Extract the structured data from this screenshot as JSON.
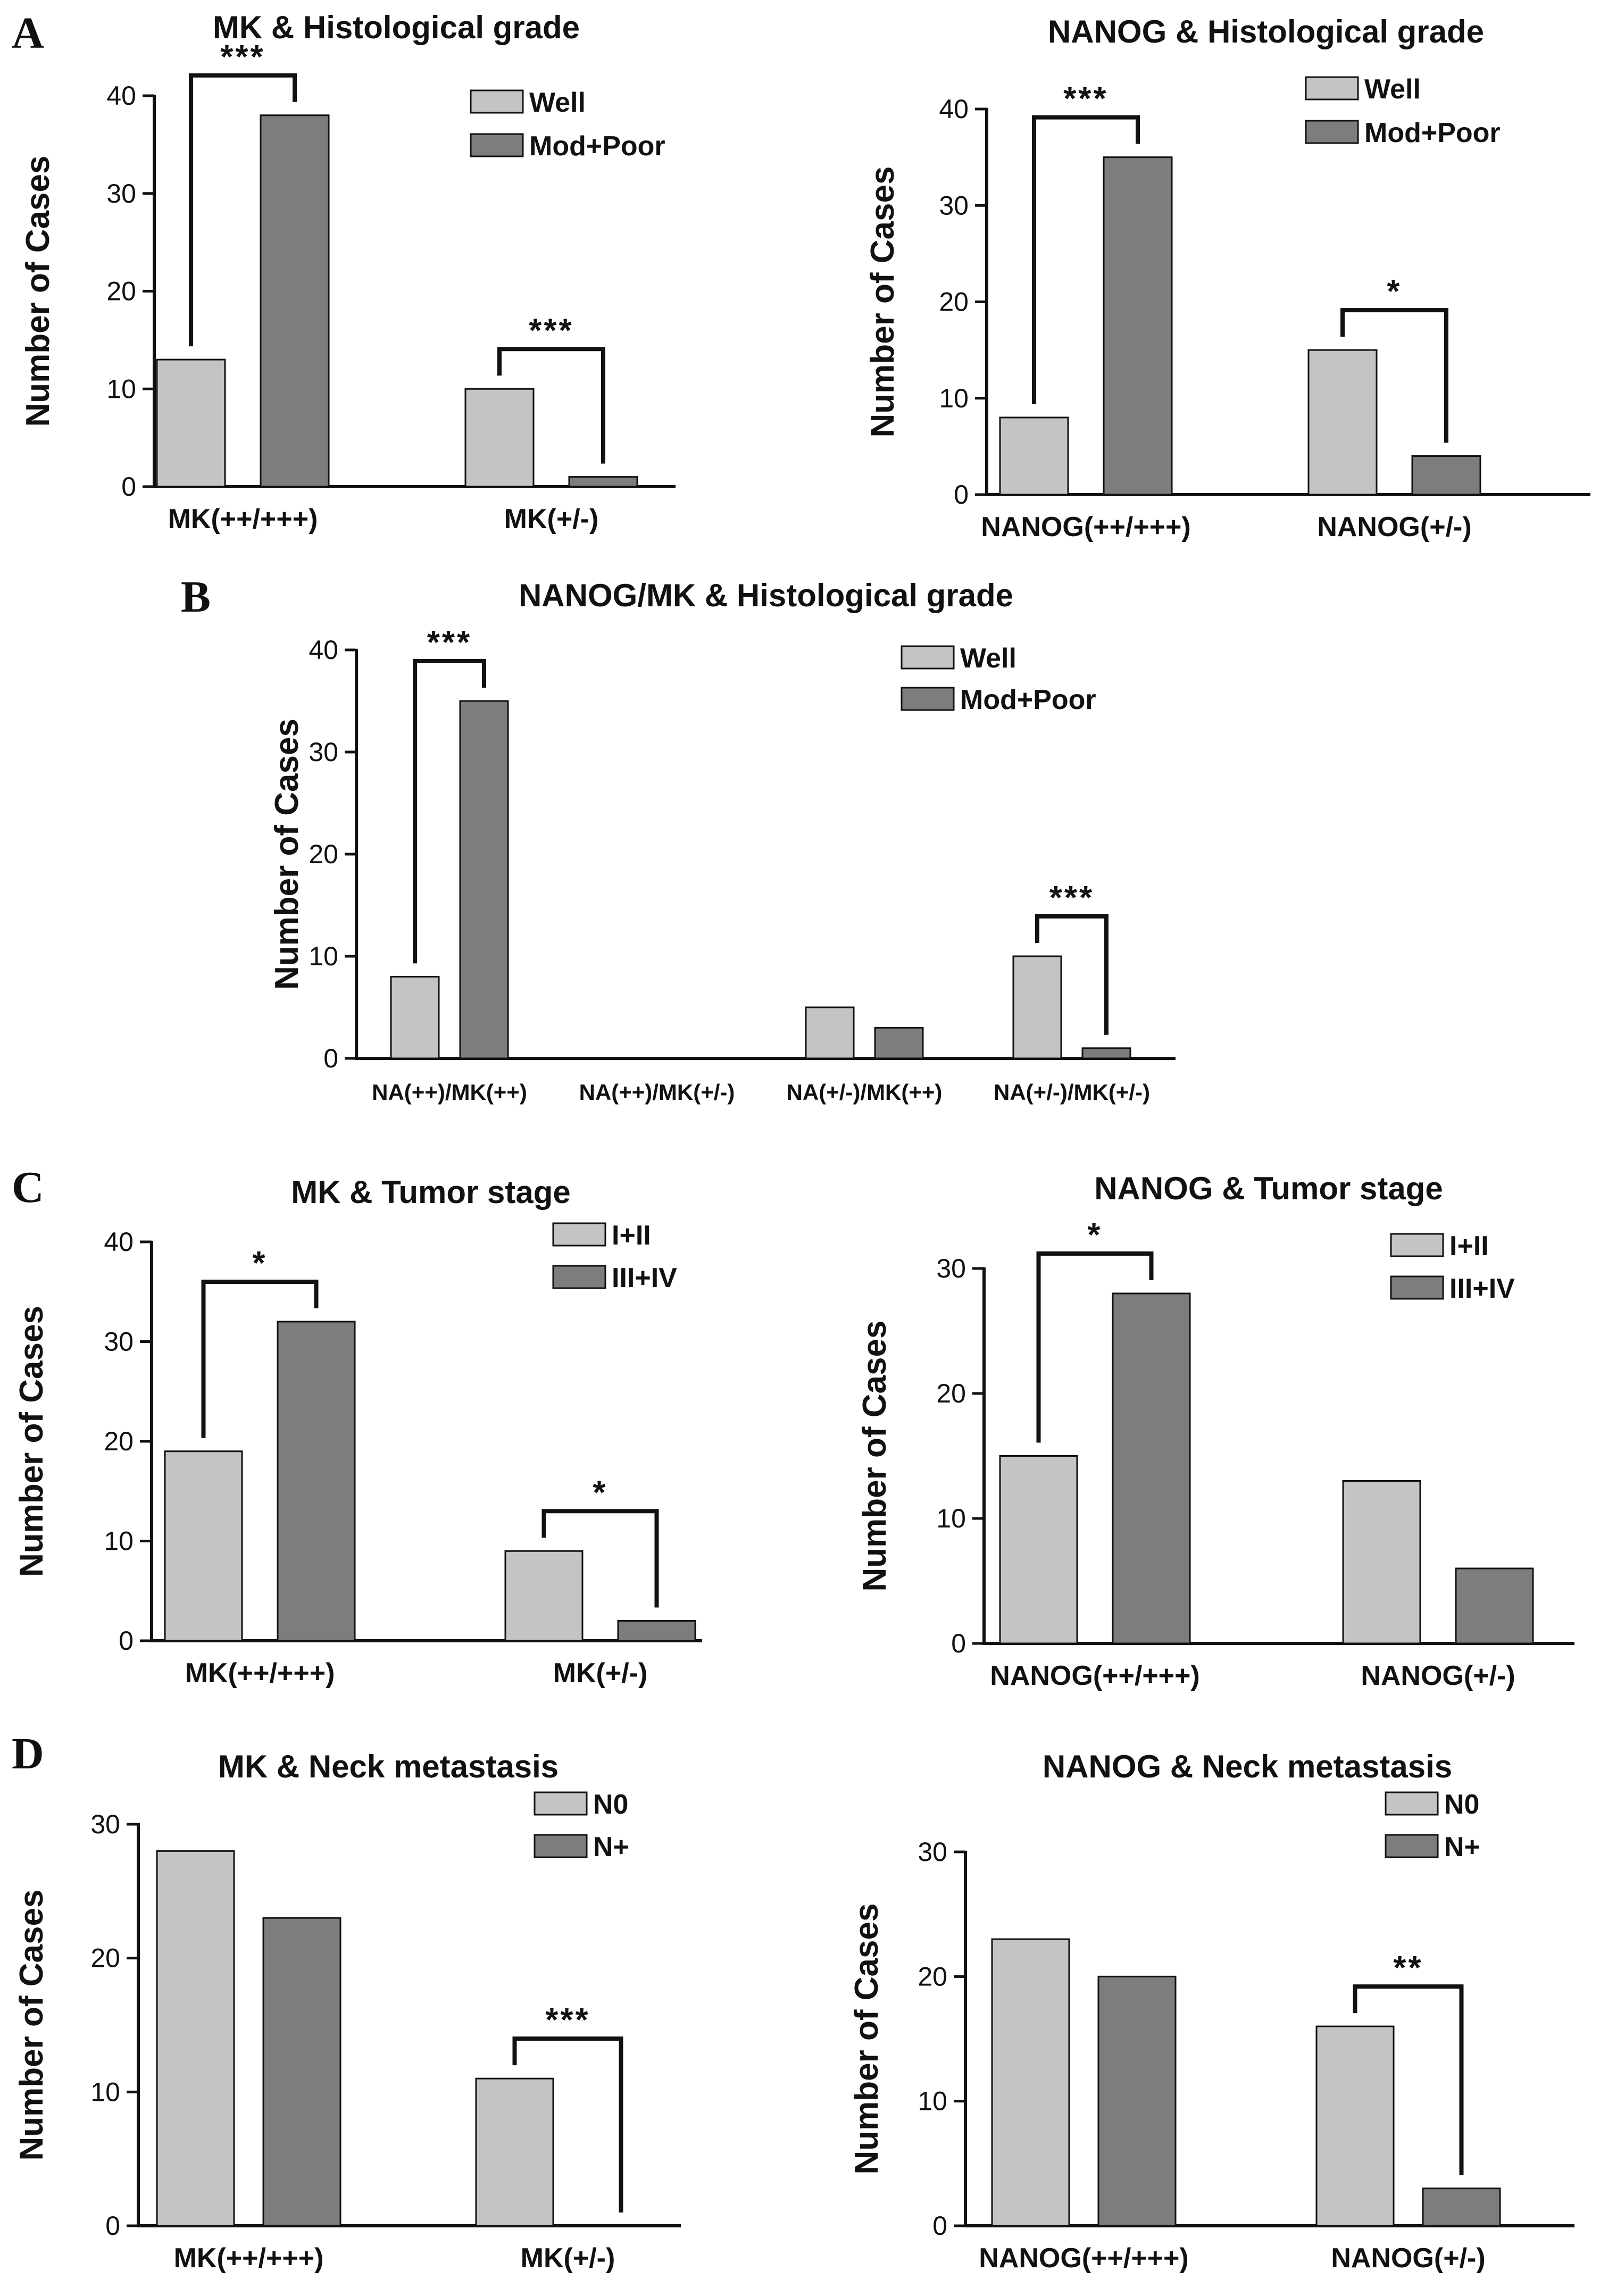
{
  "panel_letters": [
    "A",
    "B",
    "C",
    "D"
  ],
  "colors": {
    "light": "#c4c4c4",
    "dark": "#7d7d7d",
    "stroke": "#111111"
  },
  "chart_data": [
    {
      "id": "A1",
      "type": "bar",
      "title": "MK & Histological grade",
      "ylabel": "Number of Cases",
      "ylim": [
        0,
        40
      ],
      "yticks": [
        0,
        10,
        20,
        30,
        40
      ],
      "categories": [
        "MK(++/+++)",
        "MK(+/-)"
      ],
      "series": [
        {
          "name": "Well",
          "values": [
            13,
            10
          ]
        },
        {
          "name": "Mod+Poor",
          "values": [
            38,
            1
          ]
        }
      ],
      "significance": [
        {
          "category": 0,
          "label": "***"
        },
        {
          "category": 1,
          "label": "***"
        }
      ]
    },
    {
      "id": "A2",
      "type": "bar",
      "title": "NANOG & Histological grade",
      "ylabel": "Number of Cases",
      "ylim": [
        0,
        40
      ],
      "yticks": [
        0,
        10,
        20,
        30,
        40
      ],
      "categories": [
        "NANOG(++/+++)",
        "NANOG(+/-)"
      ],
      "series": [
        {
          "name": "Well",
          "values": [
            8,
            15
          ]
        },
        {
          "name": "Mod+Poor",
          "values": [
            35,
            4
          ]
        }
      ],
      "significance": [
        {
          "category": 0,
          "label": "***"
        },
        {
          "category": 1,
          "label": "*"
        }
      ]
    },
    {
      "id": "B",
      "type": "bar",
      "title": "NANOG/MK & Histological grade",
      "ylabel": "Number of Cases",
      "ylim": [
        0,
        40
      ],
      "yticks": [
        0,
        10,
        20,
        30,
        40
      ],
      "categories": [
        "NA(++)/MK(++)",
        "NA(++)/MK(+/-)",
        "NA(+/-)/MK(++)",
        "NA(+/-)/MK(+/-)"
      ],
      "series": [
        {
          "name": "Well",
          "values": [
            8,
            0,
            5,
            10
          ]
        },
        {
          "name": "Mod+Poor",
          "values": [
            35,
            0,
            3,
            1
          ]
        }
      ],
      "significance": [
        {
          "category": 0,
          "label": "***"
        },
        {
          "category": 3,
          "label": "***"
        }
      ]
    },
    {
      "id": "C1",
      "type": "bar",
      "title": "MK & Tumor stage",
      "ylabel": "Number of Cases",
      "ylim": [
        0,
        40
      ],
      "yticks": [
        0,
        10,
        20,
        30,
        40
      ],
      "categories": [
        "MK(++/+++)",
        "MK(+/-)"
      ],
      "series": [
        {
          "name": "I+II",
          "values": [
            19,
            9
          ]
        },
        {
          "name": "III+IV",
          "values": [
            32,
            2
          ]
        }
      ],
      "significance": [
        {
          "category": 0,
          "label": "*"
        },
        {
          "category": 1,
          "label": "*"
        }
      ]
    },
    {
      "id": "C2",
      "type": "bar",
      "title": "NANOG & Tumor stage",
      "ylabel": "Number of Cases",
      "ylim": [
        0,
        30
      ],
      "yticks": [
        0,
        10,
        20,
        30
      ],
      "categories": [
        "NANOG(++/+++)",
        "NANOG(+/-)"
      ],
      "series": [
        {
          "name": "I+II",
          "values": [
            15,
            13
          ]
        },
        {
          "name": "III+IV",
          "values": [
            28,
            6
          ]
        }
      ],
      "significance": [
        {
          "category": 0,
          "label": "*"
        }
      ]
    },
    {
      "id": "D1",
      "type": "bar",
      "title": "MK & Neck metastasis",
      "ylabel": "Number of Cases",
      "ylim": [
        0,
        30
      ],
      "yticks": [
        0,
        10,
        20,
        30
      ],
      "categories": [
        "MK(++/+++)",
        "MK(+/-)"
      ],
      "series": [
        {
          "name": "N0",
          "values": [
            28,
            11
          ]
        },
        {
          "name": "N+",
          "values": [
            23,
            0
          ]
        }
      ],
      "significance": [
        {
          "category": 1,
          "label": "***"
        }
      ]
    },
    {
      "id": "D2",
      "type": "bar",
      "title": "NANOG & Neck metastasis",
      "ylabel": "Number of Cases",
      "ylim": [
        0,
        30
      ],
      "yticks": [
        0,
        10,
        20,
        30
      ],
      "categories": [
        "NANOG(++/+++)",
        "NANOG(+/-)"
      ],
      "series": [
        {
          "name": "N0",
          "values": [
            23,
            16
          ]
        },
        {
          "name": "N+",
          "values": [
            20,
            3
          ]
        }
      ],
      "significance": [
        {
          "category": 1,
          "label": "**"
        }
      ]
    }
  ]
}
